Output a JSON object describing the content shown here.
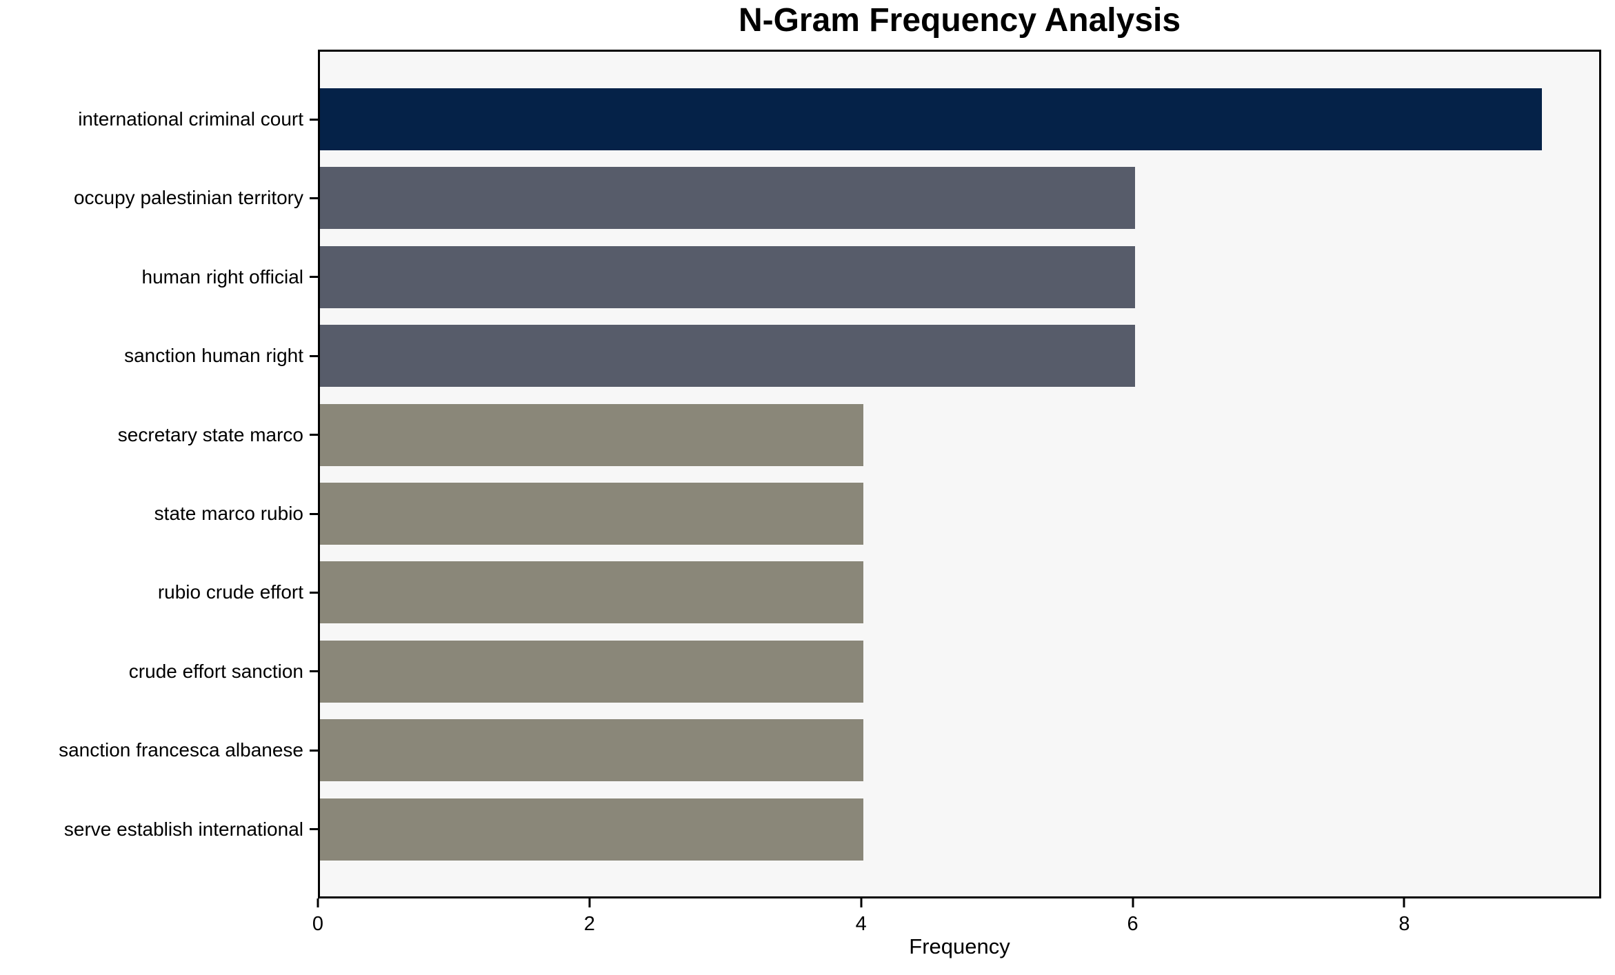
{
  "chart_data": {
    "type": "bar",
    "orientation": "horizontal",
    "title": "N-Gram Frequency Analysis",
    "xlabel": "Frequency",
    "ylabel": "",
    "categories": [
      "international criminal court",
      "occupy palestinian territory",
      "human right official",
      "sanction human right",
      "secretary state marco",
      "state marco rubio",
      "rubio crude effort",
      "crude effort sanction",
      "sanction francesca albanese",
      "serve establish international"
    ],
    "values": [
      9,
      6,
      6,
      6,
      4,
      4,
      4,
      4,
      4,
      4
    ],
    "bar_colors": [
      "#052248",
      "#575c6a",
      "#575c6a",
      "#575c6a",
      "#8a8779",
      "#8a8779",
      "#8a8779",
      "#8a8779",
      "#8a8779",
      "#8a8779"
    ],
    "x_ticks": [
      0,
      2,
      4,
      6,
      8
    ],
    "xlim": [
      0,
      9.45
    ],
    "grid": false,
    "legend": false,
    "plot_background": "#f7f7f7",
    "page_background": "#ffffff",
    "spine_color": "#000000",
    "text_color": "#000000"
  }
}
